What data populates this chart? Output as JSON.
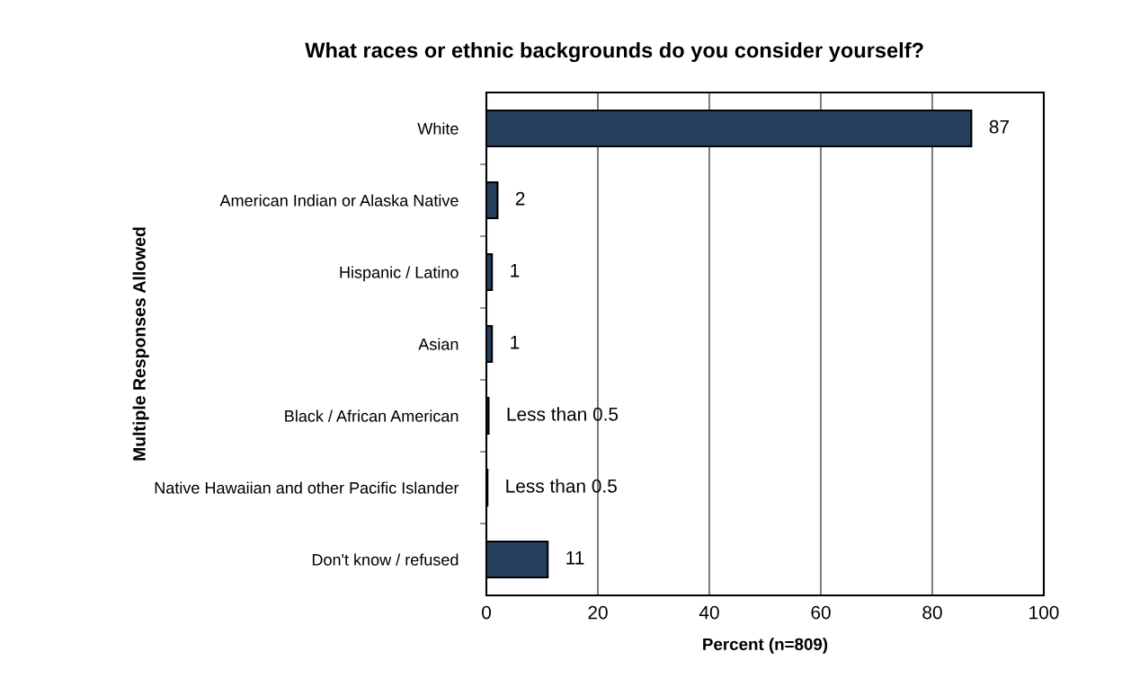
{
  "chart_data": {
    "type": "bar",
    "orientation": "horizontal",
    "title": "What races or ethnic backgrounds do you consider yourself?",
    "xlabel": "Percent (n=809)",
    "ylabel": "Multiple Responses Allowed",
    "categories": [
      "White",
      "American Indian or Alaska Native",
      "Hispanic / Latino",
      "Asian",
      "Black / African American",
      "Native Hawaiian and other Pacific Islander",
      "Don't know / refused"
    ],
    "values": [
      87,
      2,
      1,
      1,
      0.4,
      0.2,
      11
    ],
    "value_labels": [
      "87",
      "2",
      "1",
      "1",
      "Less than 0.5",
      "Less than 0.5",
      "11"
    ],
    "color": "#263f5f",
    "xlim": [
      0,
      100
    ],
    "xticks": [
      0,
      20,
      40,
      60,
      80,
      100
    ],
    "grid": "x",
    "legend": false
  }
}
